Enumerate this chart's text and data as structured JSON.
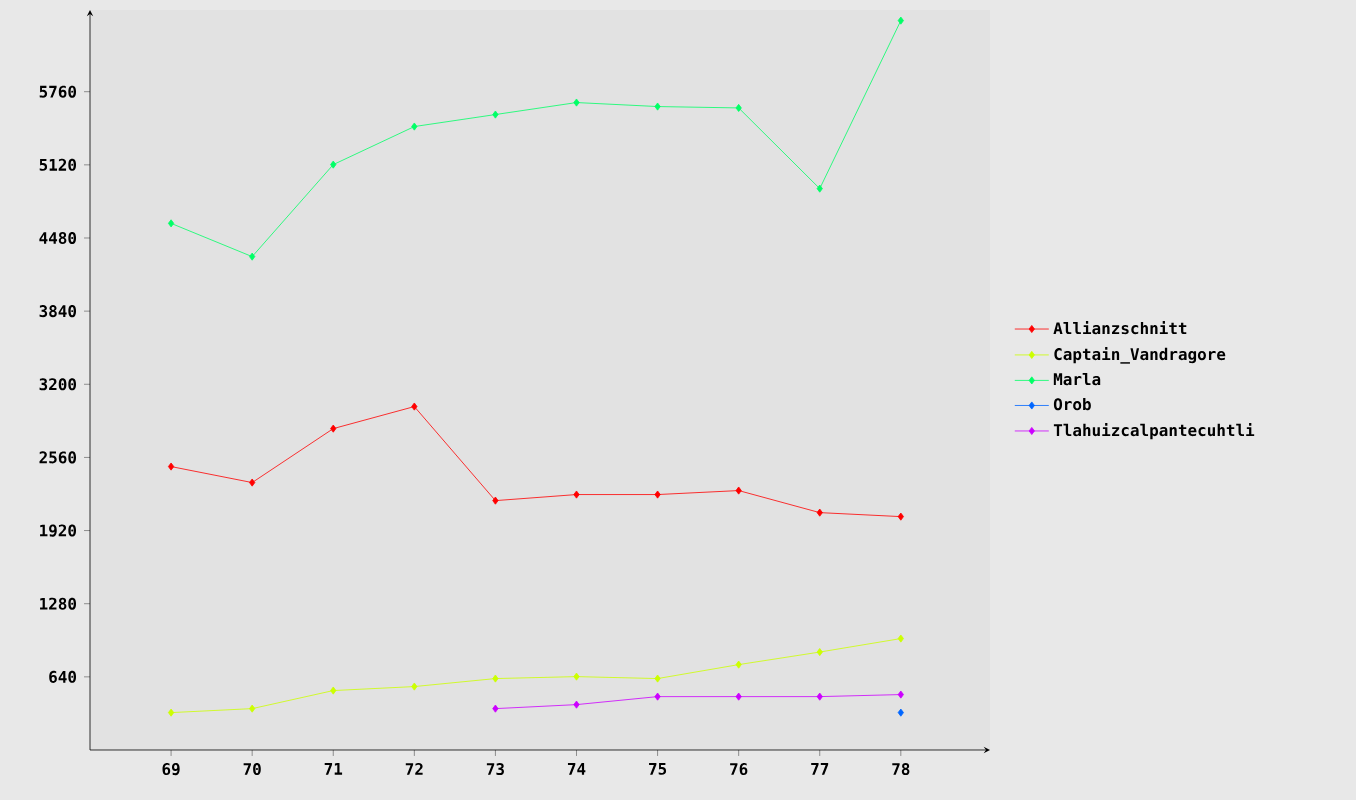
{
  "chart_data": {
    "type": "line",
    "x": [
      69,
      70,
      71,
      72,
      73,
      74,
      75,
      76,
      77,
      78
    ],
    "series": [
      {
        "name": "Allianzschnitt",
        "color": "#ff0000",
        "values": [
          2480,
          2340,
          2812,
          3005,
          2182,
          2235,
          2235,
          2270,
          2077,
          2042
        ]
      },
      {
        "name": "Captain_Vandragore",
        "color": "#ccff00",
        "values": [
          327,
          362,
          520,
          555,
          625,
          642,
          625,
          747,
          857,
          975
        ]
      },
      {
        "name": "Marla",
        "color": "#00ff66",
        "values": [
          4608,
          4317,
          5122,
          5455,
          5560,
          5665,
          5630,
          5618,
          4912,
          6382
        ]
      },
      {
        "name": "Orob",
        "color": "#0066ff",
        "values": [
          null,
          null,
          null,
          null,
          null,
          null,
          null,
          null,
          null,
          327
        ]
      },
      {
        "name": "Tlahuizcalpantecuhtli",
        "color": "#cc00ff",
        "values": [
          null,
          null,
          null,
          null,
          362,
          397,
          467,
          467,
          467,
          485
        ]
      }
    ],
    "xlim": [
      68,
      79.1
    ],
    "ylim": [
      0,
      6475
    ],
    "xticks": [
      69,
      70,
      71,
      72,
      73,
      74,
      75,
      76,
      77,
      78
    ],
    "yticks": [
      640,
      1280,
      1920,
      2560,
      3200,
      3840,
      4480,
      5120,
      5760
    ],
    "grid": false,
    "legend": "right",
    "marker": "diamond",
    "line_style": "solid"
  }
}
